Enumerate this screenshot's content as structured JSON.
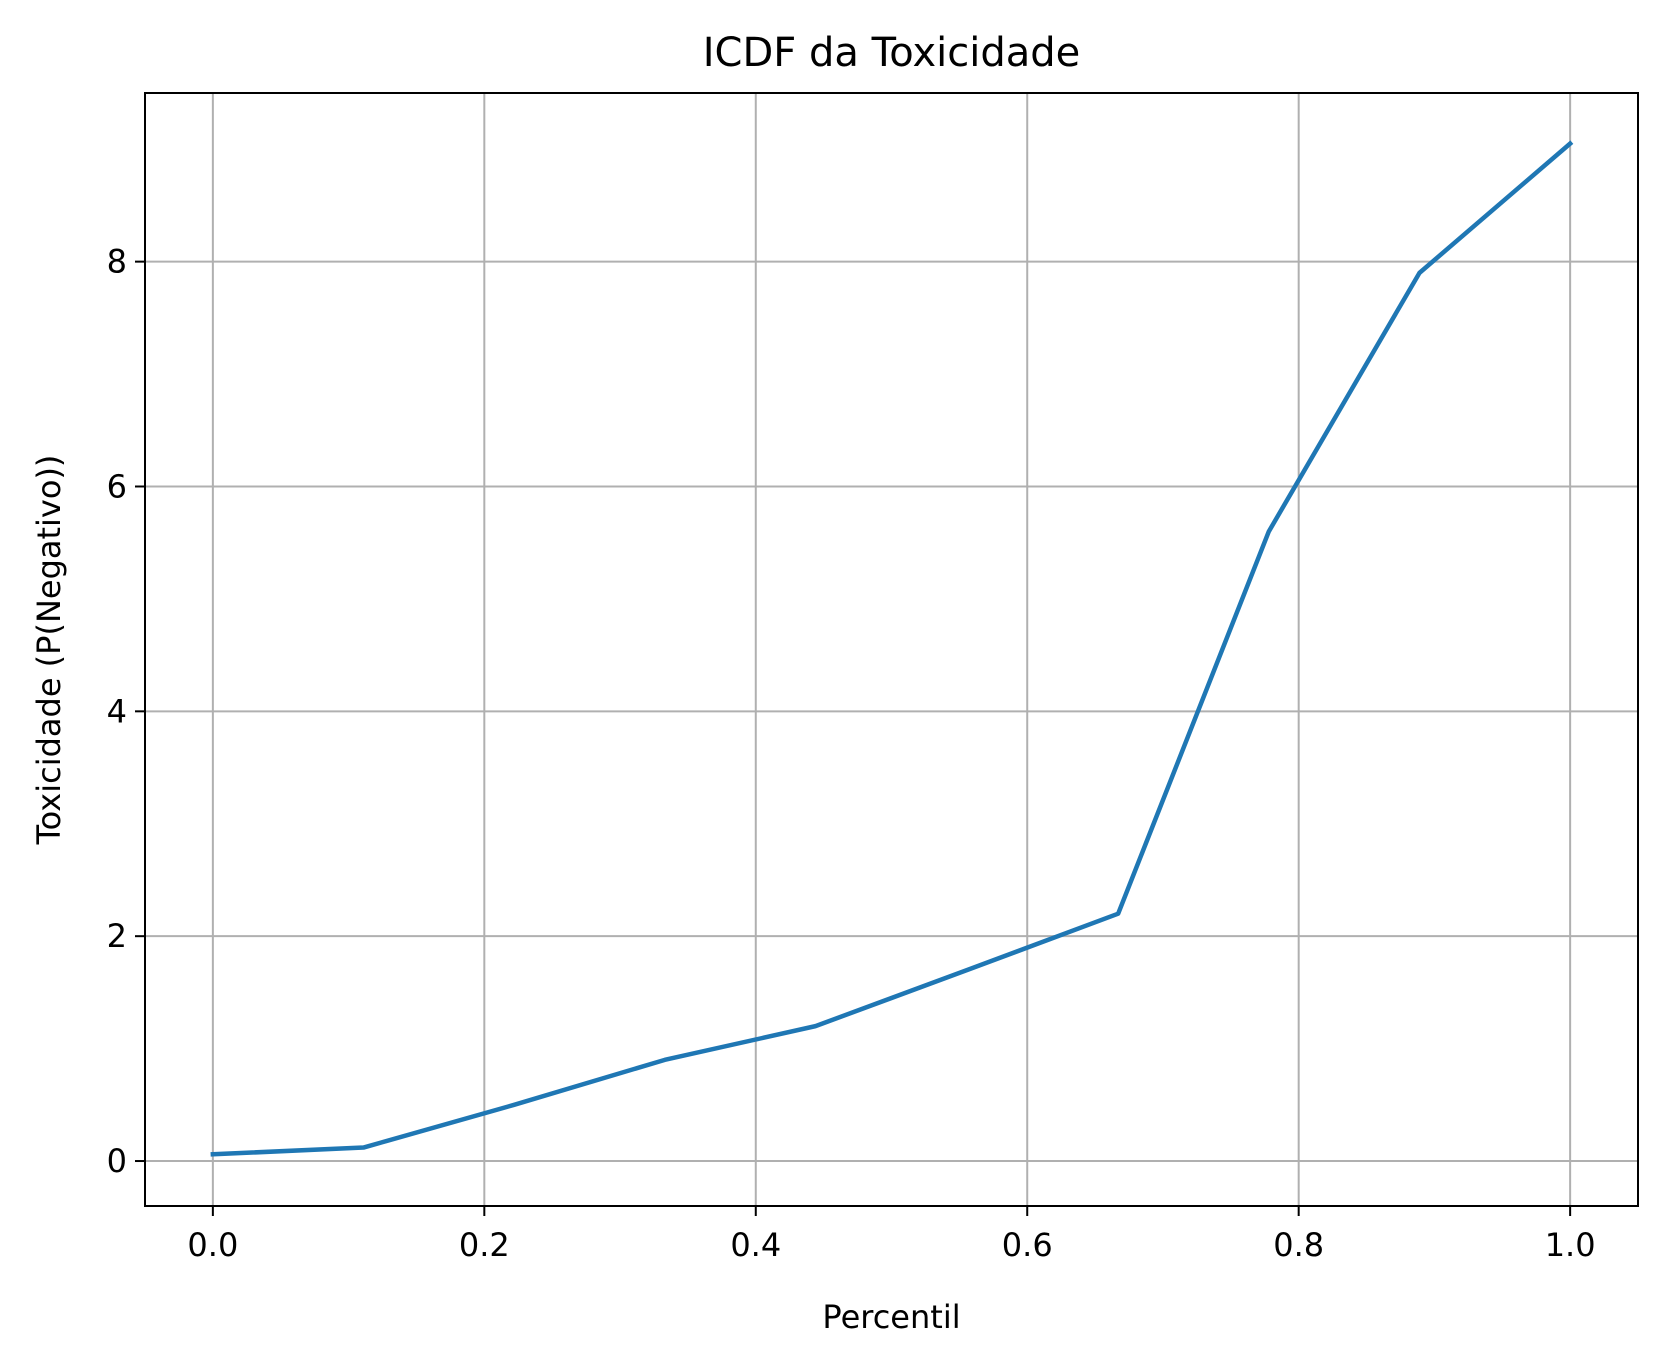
{
  "chart_data": {
    "type": "line",
    "title": "ICDF da Toxicidade",
    "xlabel": "Percentil",
    "ylabel": "Toxicidade (P(Negativo))",
    "xlim": [
      -0.05,
      1.05
    ],
    "ylim": [
      -0.4,
      9.5
    ],
    "x_ticks": [
      0.0,
      0.2,
      0.4,
      0.6,
      0.8,
      1.0
    ],
    "x_tick_labels": [
      "0.0",
      "0.2",
      "0.4",
      "0.6",
      "0.8",
      "1.0"
    ],
    "y_ticks": [
      0,
      2,
      4,
      6,
      8
    ],
    "y_tick_labels": [
      "0",
      "2",
      "4",
      "6",
      "8"
    ],
    "grid": true,
    "line_color": "#1f77b4",
    "grid_color": "#b0b0b0",
    "series": [
      {
        "x": [
          0.0,
          0.111,
          0.222,
          0.333,
          0.444,
          0.556,
          0.667,
          0.778,
          0.889,
          1.0
        ],
        "values": [
          0.06,
          0.12,
          0.5,
          0.9,
          1.2,
          1.7,
          2.2,
          5.6,
          7.9,
          9.05
        ]
      }
    ]
  }
}
